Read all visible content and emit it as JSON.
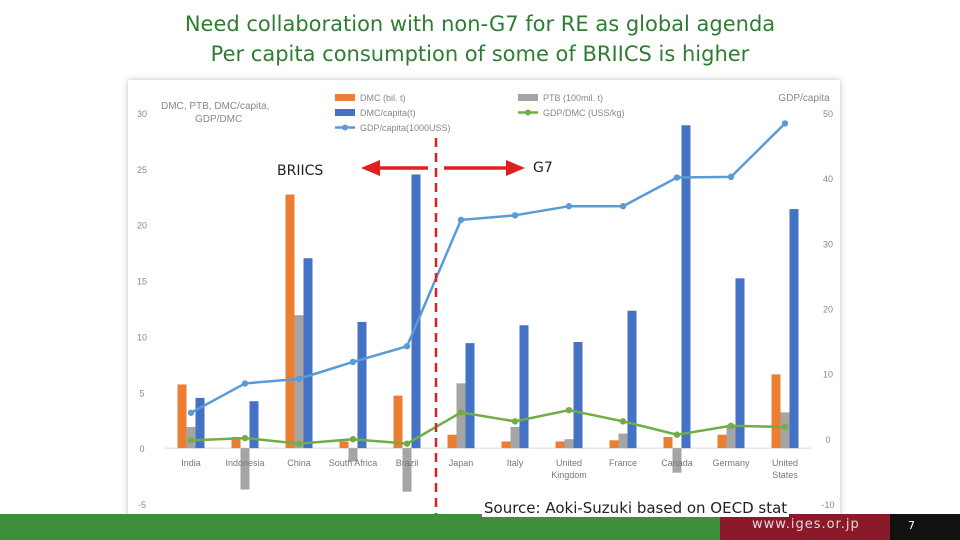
{
  "slide": {
    "title_line1": "Need collaboration with non-G7 for RE as global agenda",
    "title_line2": "Per capita consumption of some of BRIICS is higher",
    "source": "Source: Aoki-Suzuki based on OECD stat",
    "footer_url": "www.iges.or.jp",
    "page_number": "7"
  },
  "colors": {
    "title": "#2e7d32",
    "dmc": "#ed7d31",
    "ptb": "#a5a5a5",
    "dmc_capita": "#4472c4",
    "gdp_dmc": "#70ad47",
    "gdp_capita": "#5b9bd5",
    "divider": "#e02020",
    "arrow": "#e02020"
  },
  "chart_data": {
    "type": "bar",
    "left_axis_title": "DMC, PTB, DMC/capita, GDP/DMC",
    "right_axis_title": "GDP/capita",
    "ylim_left": [
      -5,
      30
    ],
    "ylim_right": [
      -10,
      50
    ],
    "left_ticks": [
      "30",
      "25",
      "20",
      "15",
      "10",
      "5",
      "0",
      "-5"
    ],
    "right_ticks": [
      "50",
      "40",
      "30",
      "20",
      "10",
      "0",
      "-10"
    ],
    "categories": [
      "India",
      "Indonesia",
      "China",
      "South Africa",
      "Brazil",
      "Japan",
      "Italy",
      "United Kingdom",
      "France",
      "Canada",
      "Germany",
      "United States"
    ],
    "category_lines": [
      [
        "India"
      ],
      [
        "Indonesia"
      ],
      [
        "China"
      ],
      [
        "South Africa"
      ],
      [
        "Brazil"
      ],
      [
        "Japan"
      ],
      [
        "Italy"
      ],
      [
        "United",
        "Kingdom"
      ],
      [
        "France"
      ],
      [
        "Canada"
      ],
      [
        "Germany"
      ],
      [
        "United",
        "States"
      ]
    ],
    "series": [
      {
        "name": "DMC (bil. t)",
        "kind": "bar",
        "axis": "left",
        "values": [
          5.7,
          1.0,
          22.7,
          0.6,
          4.7,
          1.2,
          0.6,
          0.6,
          0.7,
          1.0,
          1.2,
          6.6
        ]
      },
      {
        "name": "PTB (100mil. t)",
        "kind": "bar",
        "axis": "left",
        "values": [
          1.9,
          -3.7,
          11.9,
          -1.2,
          -3.9,
          5.8,
          1.9,
          0.8,
          1.3,
          -2.2,
          2.1,
          3.2
        ]
      },
      {
        "name": "DMC/capita(t)",
        "kind": "bar",
        "axis": "left",
        "values": [
          4.5,
          4.2,
          17.0,
          11.3,
          24.5,
          9.4,
          11.0,
          9.5,
          12.3,
          28.9,
          15.2,
          21.4
        ]
      },
      {
        "name": "GDP/DMC (USS/kg)",
        "kind": "line",
        "axis": "left",
        "values": [
          0.7,
          0.9,
          0.4,
          0.8,
          0.4,
          3.2,
          2.4,
          3.4,
          2.4,
          1.2,
          2.0,
          1.9
        ]
      },
      {
        "name": "GDP/capita(1000USS)",
        "kind": "line",
        "axis": "right",
        "values": [
          4.0,
          8.5,
          9.2,
          11.8,
          14.2,
          33.6,
          34.3,
          35.7,
          35.7,
          40.1,
          40.2,
          48.4
        ]
      }
    ],
    "annotations": {
      "left_group": "BRIICS",
      "right_group": "G7"
    }
  }
}
